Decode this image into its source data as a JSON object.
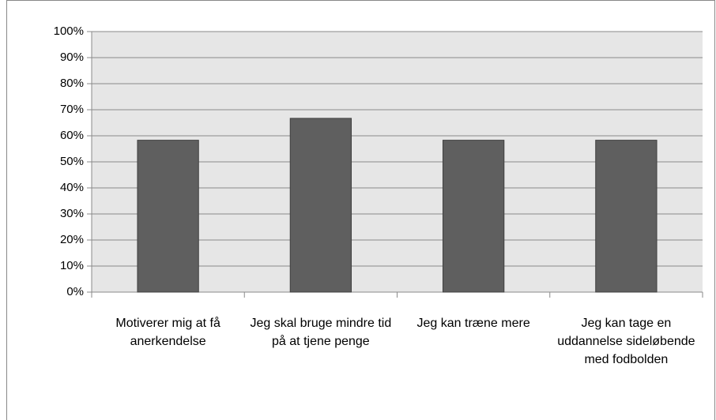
{
  "chart_data": {
    "type": "bar",
    "categories": [
      "Motiverer mig at få anerkendelse",
      "Jeg skal bruge mindre tid på at tjene penge",
      "Jeg kan træne mere",
      "Jeg kan tage en uddannelse sideløbende med fodbolden"
    ],
    "values": [
      58.3,
      66.7,
      58.3,
      58.3
    ],
    "color": "#5f5f5f",
    "ylim": [
      0,
      100
    ],
    "yticks": [
      {
        "value": 0,
        "label": "0%"
      },
      {
        "value": 10,
        "label": "10%"
      },
      {
        "value": 20,
        "label": "20%"
      },
      {
        "value": 30,
        "label": "30%"
      },
      {
        "value": 40,
        "label": "40%"
      },
      {
        "value": 50,
        "label": "50%"
      },
      {
        "value": 60,
        "label": "60%"
      },
      {
        "value": 70,
        "label": "70%"
      },
      {
        "value": 80,
        "label": "80%"
      },
      {
        "value": 90,
        "label": "90%"
      },
      {
        "value": 100,
        "label": "100%"
      }
    ],
    "grid": true
  }
}
